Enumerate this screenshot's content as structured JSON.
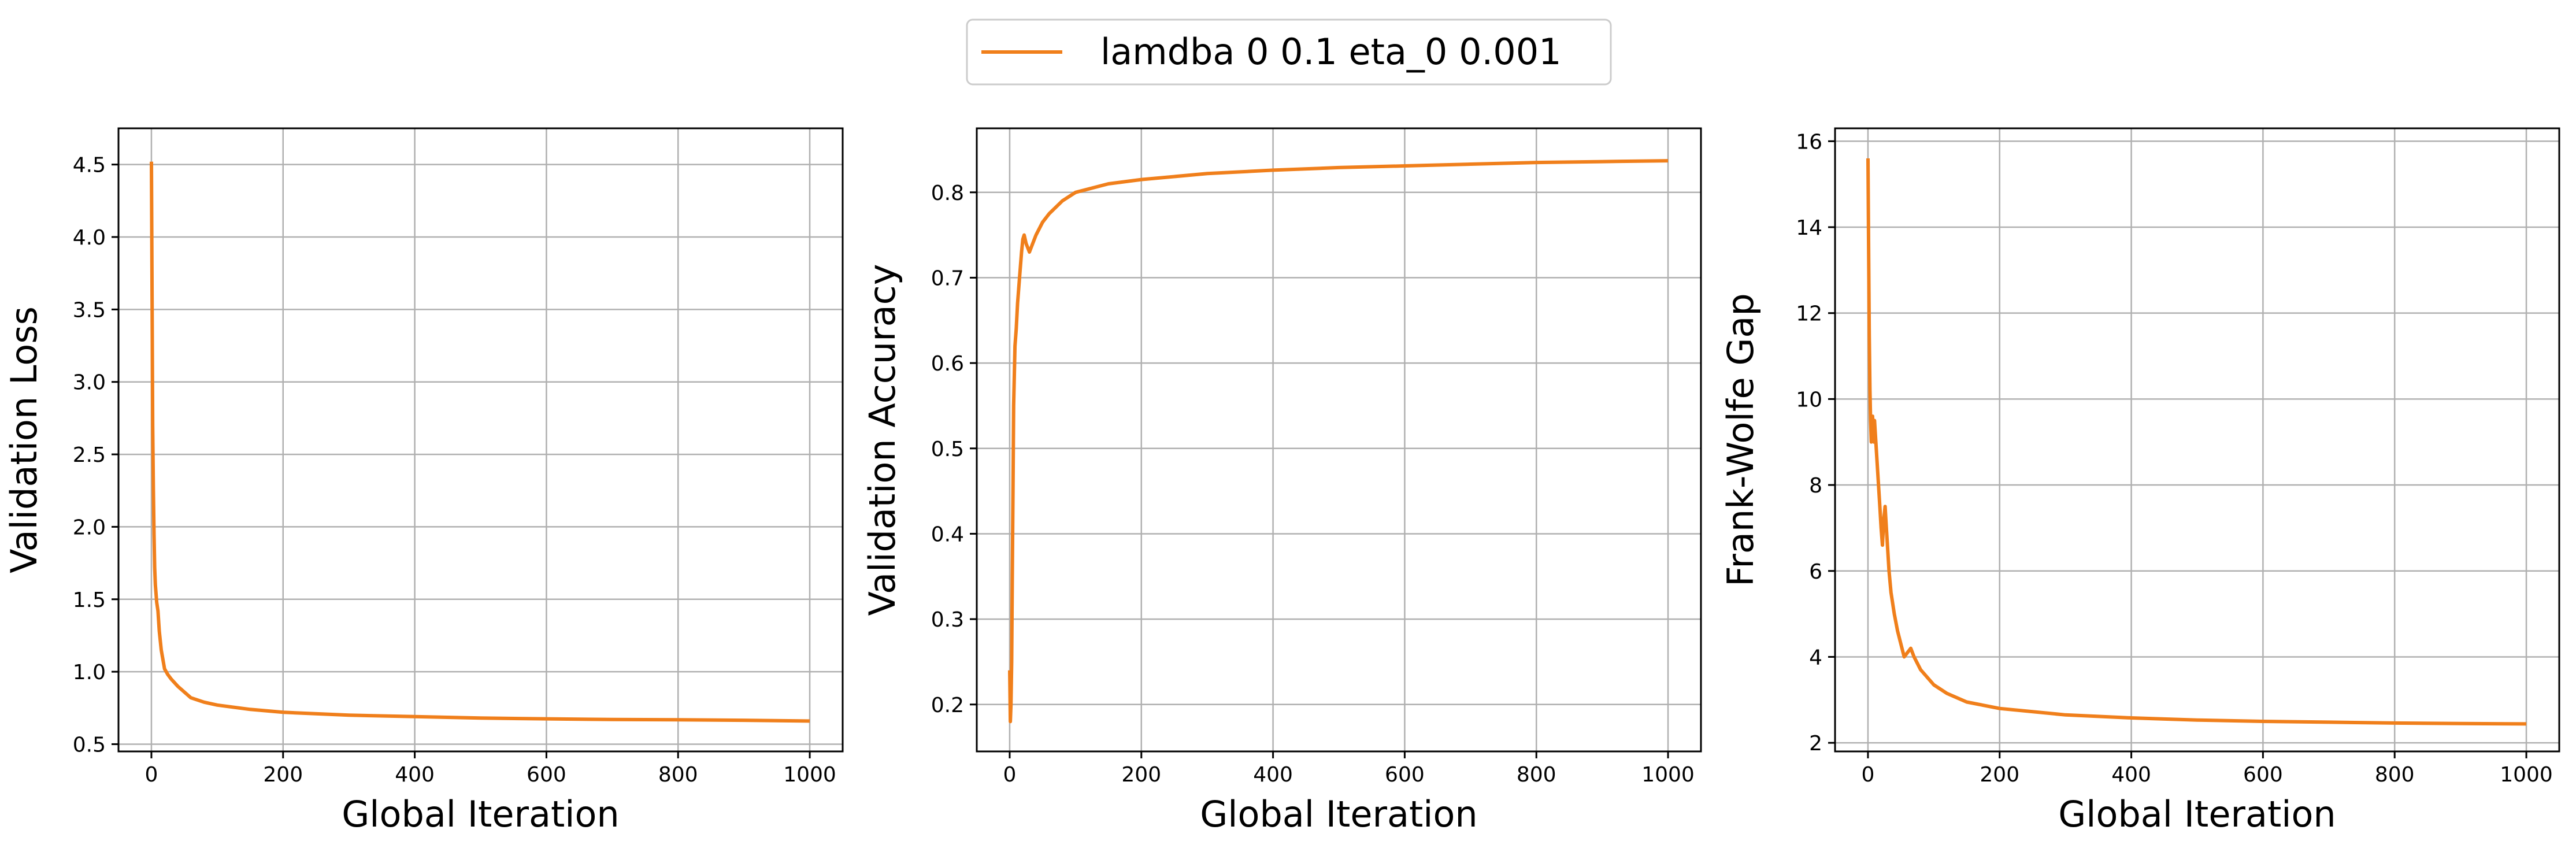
{
  "legend": {
    "label": "lamdba 0 0.1 eta_0 0.001",
    "location": "top-center"
  },
  "style": {
    "line_color": "#f07f1b",
    "grid_color": "#b0b0b0",
    "axes_color": "#000000",
    "background": "#ffffff"
  },
  "chart_data": [
    {
      "type": "line",
      "title": "",
      "xlabel": "Global Iteration",
      "ylabel": "Validation Loss",
      "xlim": [
        -50,
        1050
      ],
      "ylim": [
        0.45,
        4.75
      ],
      "xticks": [
        0,
        200,
        400,
        600,
        800,
        1000
      ],
      "yticks": [
        0.5,
        1.0,
        1.5,
        2.0,
        2.5,
        3.0,
        3.5,
        4.0,
        4.5
      ],
      "ytick_labels": [
        "0.5",
        "1.0",
        "1.5",
        "2.0",
        "2.5",
        "3.0",
        "3.5",
        "4.0",
        "4.5"
      ],
      "grid": true,
      "series": [
        {
          "name": "lamdba 0 0.1 eta_0 0.001",
          "x": [
            0,
            1,
            2,
            3,
            4,
            5,
            6,
            8,
            10,
            12,
            15,
            18,
            20,
            25,
            30,
            40,
            50,
            60,
            80,
            100,
            150,
            200,
            300,
            400,
            500,
            600,
            700,
            800,
            900,
            1000
          ],
          "y": [
            4.52,
            3.6,
            2.7,
            2.25,
            1.95,
            1.72,
            1.6,
            1.48,
            1.42,
            1.28,
            1.15,
            1.07,
            1.02,
            0.98,
            0.95,
            0.9,
            0.86,
            0.82,
            0.79,
            0.77,
            0.74,
            0.72,
            0.7,
            0.69,
            0.68,
            0.675,
            0.67,
            0.668,
            0.665,
            0.66
          ]
        }
      ]
    },
    {
      "type": "line",
      "title": "",
      "xlabel": "Global Iteration",
      "ylabel": "Validation Accuracy",
      "xlim": [
        -50,
        1050
      ],
      "ylim": [
        0.145,
        0.875
      ],
      "xticks": [
        0,
        200,
        400,
        600,
        800,
        1000
      ],
      "yticks": [
        0.2,
        0.3,
        0.4,
        0.5,
        0.6,
        0.7,
        0.8
      ],
      "ytick_labels": [
        "0.2",
        "0.3",
        "0.4",
        "0.5",
        "0.6",
        "0.7",
        "0.8"
      ],
      "grid": true,
      "series": [
        {
          "name": "lamdba 0 0.1 eta_0 0.001",
          "x": [
            0,
            1,
            2,
            3,
            4,
            5,
            6,
            8,
            10,
            12,
            15,
            18,
            20,
            22,
            25,
            30,
            40,
            50,
            60,
            80,
            100,
            150,
            200,
            300,
            400,
            500,
            600,
            700,
            800,
            900,
            1000
          ],
          "y": [
            0.24,
            0.18,
            0.2,
            0.25,
            0.35,
            0.45,
            0.55,
            0.62,
            0.64,
            0.67,
            0.7,
            0.73,
            0.745,
            0.75,
            0.74,
            0.73,
            0.75,
            0.765,
            0.775,
            0.79,
            0.8,
            0.81,
            0.815,
            0.822,
            0.826,
            0.829,
            0.831,
            0.833,
            0.835,
            0.836,
            0.837
          ]
        }
      ]
    },
    {
      "type": "line",
      "title": "",
      "xlabel": "Global Iteration",
      "ylabel": "Frank-Wolfe Gap",
      "xlim": [
        -50,
        1050
      ],
      "ylim": [
        1.8,
        16.3
      ],
      "xticks": [
        0,
        200,
        400,
        600,
        800,
        1000
      ],
      "yticks": [
        2,
        4,
        6,
        8,
        10,
        12,
        14,
        16
      ],
      "ytick_labels": [
        "2",
        "4",
        "6",
        "8",
        "10",
        "12",
        "14",
        "16"
      ],
      "grid": true,
      "series": [
        {
          "name": "lamdba 0 0.1 eta_0 0.001",
          "x": [
            0,
            1,
            2,
            3,
            4,
            5,
            6,
            7,
            8,
            9,
            10,
            12,
            14,
            16,
            18,
            20,
            22,
            24,
            26,
            28,
            30,
            32,
            35,
            40,
            45,
            50,
            55,
            60,
            65,
            70,
            80,
            100,
            120,
            150,
            200,
            300,
            400,
            500,
            600,
            700,
            800,
            900,
            1000
          ],
          "y": [
            15.6,
            13.5,
            11.5,
            10.2,
            9.5,
            9.0,
            9.4,
            9.6,
            9.3,
            9.0,
            9.5,
            9.0,
            8.5,
            8.0,
            7.5,
            7.0,
            6.6,
            7.2,
            7.5,
            7.0,
            6.5,
            6.0,
            5.5,
            5.0,
            4.6,
            4.3,
            4.0,
            4.1,
            4.2,
            4.0,
            3.7,
            3.35,
            3.15,
            2.95,
            2.8,
            2.65,
            2.58,
            2.53,
            2.5,
            2.48,
            2.46,
            2.45,
            2.44
          ]
        }
      ]
    }
  ]
}
